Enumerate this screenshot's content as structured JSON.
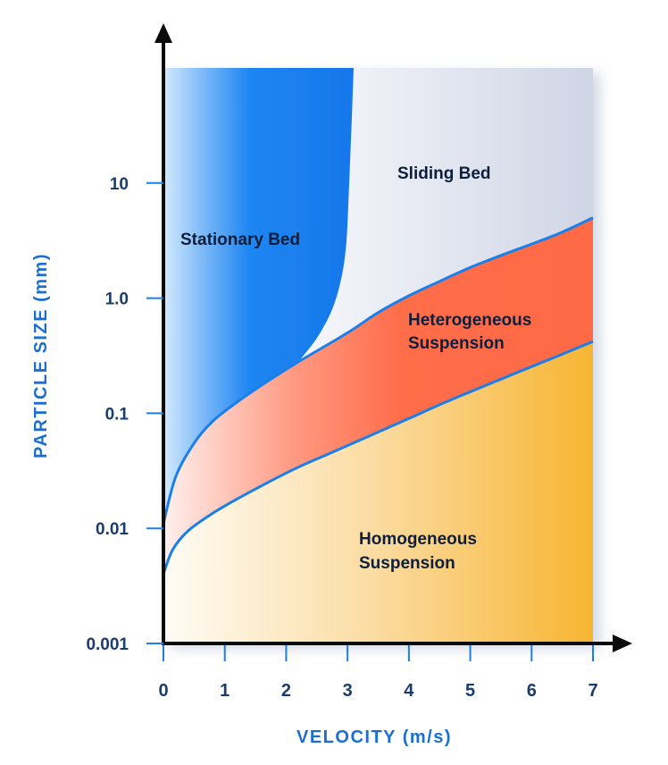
{
  "chart_data": {
    "type": "area",
    "title": "",
    "xlabel": "VELOCITY (m/s)",
    "ylabel": "PARTICLE SIZE (mm)",
    "xlim": [
      0,
      7
    ],
    "ylim": [
      0.001,
      100
    ],
    "yscale": "log",
    "x_ticks": [
      0,
      1,
      2,
      3,
      4,
      5,
      6,
      7
    ],
    "x_tick_labels": [
      "0",
      "1",
      "2",
      "3",
      "4",
      "5",
      "6",
      "7"
    ],
    "y_ticks": [
      0.001,
      0.01,
      0.1,
      1,
      10
    ],
    "y_tick_labels": [
      "0.001",
      "0.01",
      "0.1",
      "1.0",
      "10"
    ],
    "grid": false,
    "regions": [
      {
        "name": "Stationary Bed",
        "label_lines": [
          "Stationary Bed"
        ],
        "color": "#1a82f0"
      },
      {
        "name": "Sliding Bed",
        "label_lines": [
          "Sliding Bed"
        ],
        "color": "#d3d8e6"
      },
      {
        "name": "Heterogeneous Suspension",
        "label_lines": [
          "Heterogeneous",
          "Suspension"
        ],
        "color": "#ff6a45"
      },
      {
        "name": "Homogeneous Suspension",
        "label_lines": [
          "Homogeneous",
          "Suspension"
        ],
        "color": "#f7b531"
      }
    ],
    "boundaries": {
      "stationary_sliding": {
        "x": [
          2.2,
          2.5,
          2.75,
          2.9,
          2.98,
          3.02,
          3.05,
          3.08,
          3.1
        ],
        "y": [
          0.28,
          0.45,
          0.8,
          1.5,
          3.0,
          8.0,
          20.0,
          50.0,
          100.0
        ]
      },
      "lower_of_stationary_and_sliding": {
        "x": [
          0,
          0.2,
          0.5,
          0.8,
          1.2,
          1.7,
          2.2,
          3.0,
          3.5,
          4.0,
          4.5,
          5.0,
          5.5,
          6.0,
          6.5,
          7.0
        ],
        "y": [
          0.011,
          0.028,
          0.055,
          0.085,
          0.125,
          0.19,
          0.28,
          0.5,
          0.75,
          1.05,
          1.4,
          1.85,
          2.35,
          2.95,
          3.75,
          5.0
        ]
      },
      "heterogeneous_homogeneous": {
        "x": [
          0,
          0.15,
          0.4,
          0.8,
          1.2,
          1.7,
          2.2,
          2.8,
          3.4,
          4.0,
          4.6,
          5.2,
          5.8,
          6.4,
          7.0
        ],
        "y": [
          0.004,
          0.0065,
          0.0095,
          0.0135,
          0.018,
          0.025,
          0.034,
          0.047,
          0.065,
          0.09,
          0.125,
          0.17,
          0.23,
          0.31,
          0.42
        ]
      }
    }
  }
}
